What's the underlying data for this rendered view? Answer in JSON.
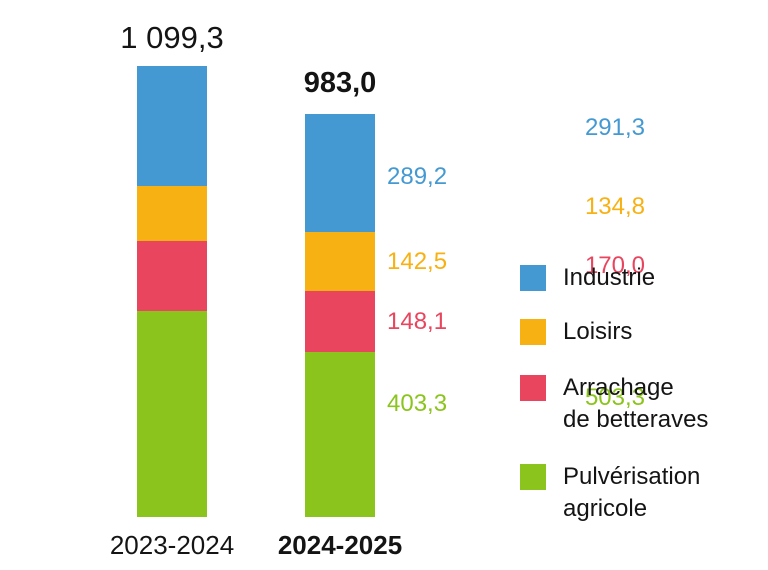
{
  "chart_data": {
    "type": "bar",
    "stacked": true,
    "title": "",
    "xlabel": "",
    "ylabel": "",
    "grid": false,
    "axes_visible": false,
    "ylim": [
      0,
      1099.3
    ],
    "categories": [
      "2023-2024",
      "2024-2025"
    ],
    "series": [
      {
        "name": "Industrie",
        "color": "#4499d3",
        "values": [
          291.3,
          289.2
        ]
      },
      {
        "name": "Loisirs",
        "color": "#f8b112",
        "values": [
          134.8,
          142.5
        ]
      },
      {
        "name": "Arrachage de betteraves",
        "color": "#e9455e",
        "values": [
          170.0,
          148.1
        ]
      },
      {
        "name": "Pulvérisation agricole",
        "color": "#8cc41e",
        "values": [
          503.3,
          403.3
        ]
      }
    ],
    "totals": [
      1099.3,
      983.0
    ],
    "total_labels": [
      "1 099,3",
      "983,0"
    ],
    "value_labels": [
      [
        "291,3",
        "134,8",
        "170,0",
        "503,3"
      ],
      [
        "289,2",
        "142,5",
        "148,1",
        "403,3"
      ]
    ],
    "legend": {
      "position": "right",
      "items": [
        {
          "label": "Industrie",
          "lines": [
            "Industrie"
          ],
          "color": "#4499d3"
        },
        {
          "label": "Loisirs",
          "lines": [
            "Loisirs"
          ],
          "color": "#f8b112"
        },
        {
          "label": "Arrachage de betteraves",
          "lines": [
            "Arrachage",
            "de betteraves"
          ],
          "color": "#e9455e"
        },
        {
          "label": "Pulvérisation agricole",
          "lines": [
            "Pulvérisation",
            "agricole"
          ],
          "color": "#8cc41e"
        }
      ]
    }
  }
}
